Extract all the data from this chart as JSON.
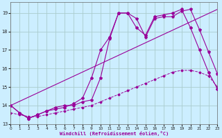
{
  "xlabel": "Windchill (Refroidissement éolien,°C)",
  "background_color": "#cceeff",
  "grid_color": "#aacccc",
  "line_color": "#990099",
  "xlim": [
    0,
    23
  ],
  "ylim": [
    13,
    19.6
  ],
  "yticks": [
    13,
    14,
    15,
    16,
    17,
    18,
    19
  ],
  "xticks": [
    0,
    1,
    2,
    3,
    4,
    5,
    6,
    7,
    8,
    9,
    10,
    11,
    12,
    13,
    14,
    15,
    16,
    17,
    18,
    19,
    20,
    21,
    22,
    23
  ],
  "series1": {
    "x": [
      0,
      1,
      2,
      3,
      4,
      5,
      6,
      7,
      8,
      9,
      10,
      11,
      12,
      13,
      14,
      15,
      16,
      17,
      18,
      19,
      20,
      21,
      22,
      23
    ],
    "y": [
      14.0,
      13.6,
      13.3,
      13.5,
      13.7,
      13.8,
      13.9,
      14.1,
      14.4,
      15.5,
      17.0,
      17.7,
      19.0,
      19.0,
      18.2,
      17.8,
      18.8,
      18.9,
      19.0,
      19.2,
      18.2,
      17.0,
      15.8,
      14.9
    ]
  },
  "series2": {
    "x": [
      0,
      1,
      2,
      3,
      4,
      5,
      6,
      7,
      8,
      9,
      10,
      11,
      12,
      13,
      14,
      15,
      16,
      17,
      18,
      19,
      20,
      21,
      22,
      23
    ],
    "y": [
      14.0,
      13.6,
      13.3,
      13.5,
      13.7,
      13.9,
      14.0,
      14.0,
      14.2,
      14.3,
      15.5,
      17.6,
      19.0,
      19.0,
      18.7,
      17.7,
      18.7,
      18.8,
      18.8,
      19.1,
      19.2,
      18.1,
      16.9,
      15.7
    ]
  },
  "series3_x": [
    0,
    23
  ],
  "series3_y": [
    14.0,
    19.2
  ],
  "series4_x": [
    0,
    1,
    2,
    3,
    4,
    5,
    6,
    7,
    8,
    9,
    10,
    11,
    12,
    13,
    14,
    15,
    16,
    17,
    18,
    19,
    20,
    21,
    22,
    23
  ],
  "series4_y": [
    13.6,
    13.5,
    13.4,
    13.4,
    13.5,
    13.6,
    13.7,
    13.8,
    13.9,
    14.0,
    14.2,
    14.4,
    14.6,
    14.8,
    15.0,
    15.2,
    15.4,
    15.6,
    15.8,
    15.9,
    15.9,
    15.8,
    15.6,
    15.0
  ]
}
